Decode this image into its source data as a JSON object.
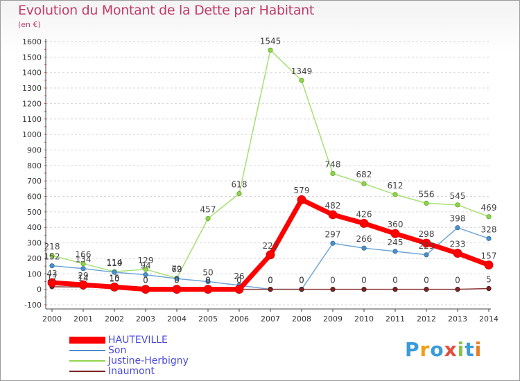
{
  "chart_data": {
    "type": "line",
    "title": "Evolution du Montant de la Dette par Habitant",
    "subtitle": "(en €)",
    "categories": [
      "2000",
      "2001",
      "2002",
      "2003",
      "2004",
      "2005",
      "2006",
      "2007",
      "2008",
      "2009",
      "2010",
      "2011",
      "2012",
      "2013",
      "2014"
    ],
    "ylim": [
      -100,
      1600
    ],
    "yticks": [
      "-100",
      "0",
      "100",
      "200",
      "300",
      "400",
      "500",
      "600",
      "700",
      "800",
      "900",
      "1000",
      "1100",
      "1200",
      "1300",
      "1400",
      "1500",
      "1600"
    ],
    "grid": "dashed horizontal",
    "legend_position": "bottom-left",
    "series": [
      {
        "name": "HAUTEVILLE",
        "color": "#ff0000",
        "values": [
          43,
          29,
          15,
          0,
          0,
          0,
          0,
          223,
          579,
          482,
          426,
          360,
          298,
          233,
          157
        ],
        "labels": [
          "43",
          "29",
          "15",
          "0",
          "0",
          "0",
          "0",
          "223",
          "579",
          "482",
          "426",
          "360",
          "298",
          "233",
          "157"
        ]
      },
      {
        "name": "Son",
        "color": "#4f8fc7",
        "values": [
          152,
          134,
          110,
          94,
          69,
          50,
          26,
          0,
          0,
          297,
          266,
          245,
          223,
          398,
          328
        ],
        "labels": [
          "152",
          "134",
          "110",
          "94",
          "69",
          "50",
          "26",
          "0",
          "0",
          "297",
          "266",
          "245",
          "223",
          "398",
          "328"
        ]
      },
      {
        "name": "Justine-Herbigny",
        "color": "#8fd44a",
        "values": [
          218,
          166,
          114,
          129,
          72,
          457,
          618,
          1545,
          1349,
          748,
          682,
          612,
          556,
          545,
          469
        ],
        "labels": [
          "218",
          "166",
          "114",
          "129",
          "72",
          "457",
          "618",
          "1545",
          "1349",
          "748",
          "682",
          "612",
          "556",
          "545",
          "469"
        ]
      },
      {
        "name": "Inaumont",
        "color": "#7a2525",
        "values": [
          17,
          14,
          10,
          0,
          0,
          0,
          0,
          0,
          0,
          0,
          0,
          0,
          0,
          0,
          5
        ],
        "labels": [
          "17",
          "14",
          "10",
          "0",
          "0",
          "0",
          "0",
          "0",
          "0",
          "0",
          "0",
          "0",
          "0",
          "0",
          "5"
        ]
      }
    ]
  },
  "logo": {
    "letters": [
      "P",
      "r",
      "o",
      "x",
      "i",
      "t",
      "i"
    ],
    "colors": [
      "#3a9bd9",
      "#f39c12",
      "#3a9bd9",
      "#e74c3c",
      "#8bc34a",
      "#3a9bd9",
      "#e67e22"
    ]
  }
}
